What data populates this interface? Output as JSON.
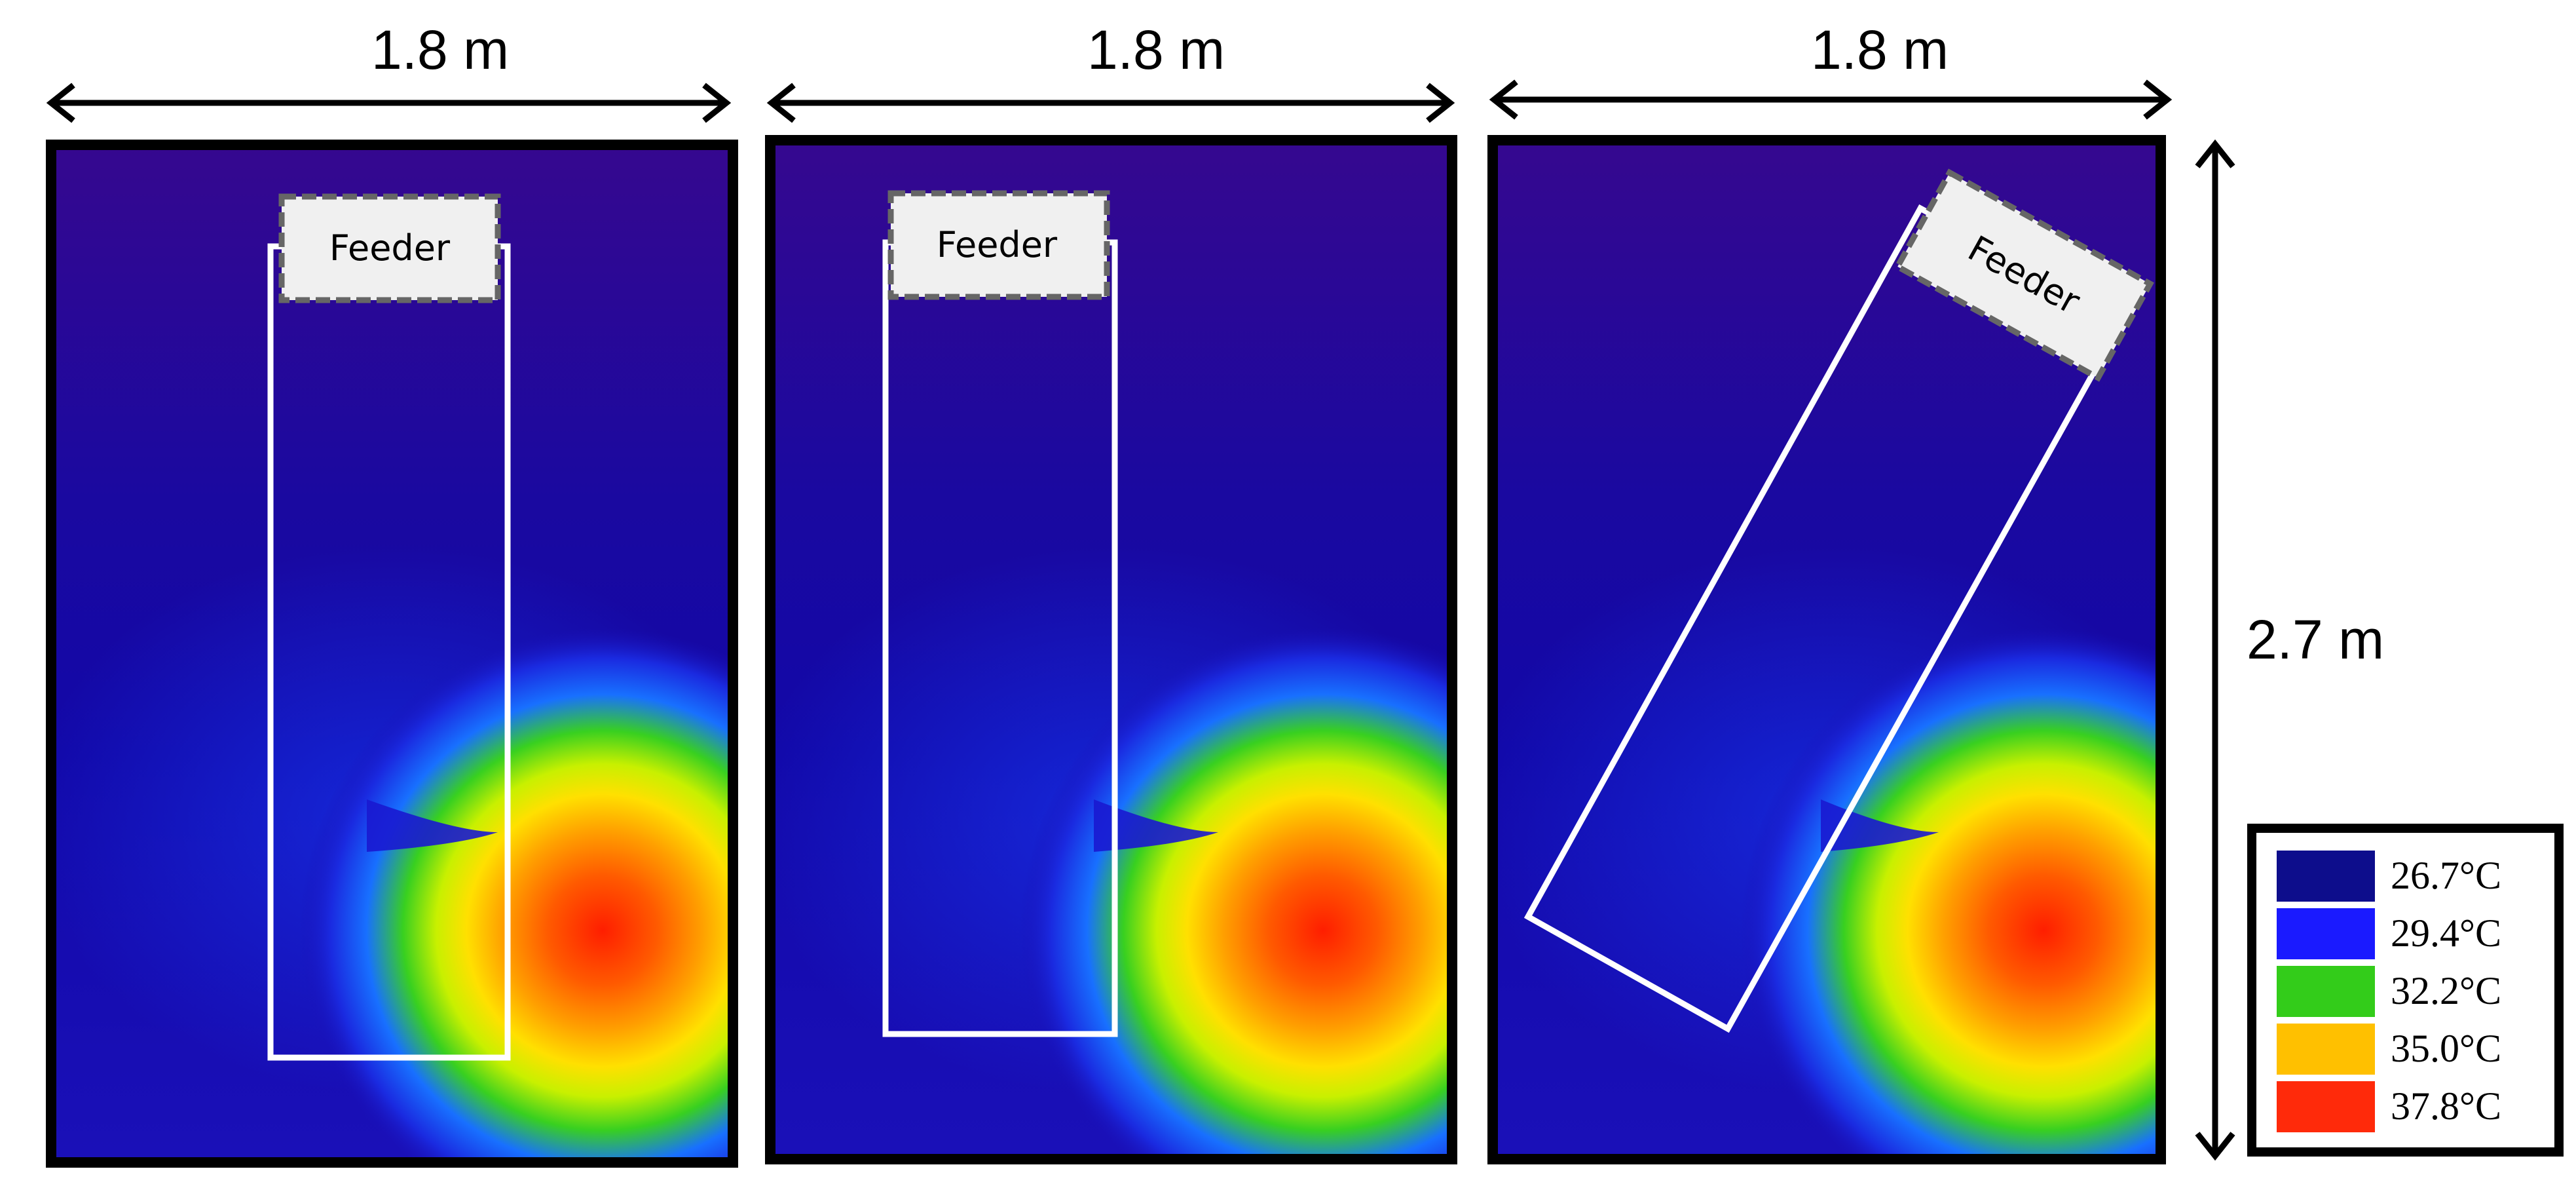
{
  "dimensions": {
    "width_label": "1.8 m",
    "height_label": "2.7 m"
  },
  "panels": [
    {
      "feeder_label": "Feeder"
    },
    {
      "feeder_label": "Feeder"
    },
    {
      "feeder_label": "Feeder"
    }
  ],
  "legend": {
    "items": [
      {
        "label": "26.7°C",
        "color": "#0d0d8c"
      },
      {
        "label": "29.4°C",
        "color": "#1a1aff"
      },
      {
        "label": "32.2°C",
        "color": "#33cc1a"
      },
      {
        "label": "35.0°C",
        "color": "#ffc000"
      },
      {
        "label": "37.8°C",
        "color": "#ff2a0a"
      }
    ]
  }
}
